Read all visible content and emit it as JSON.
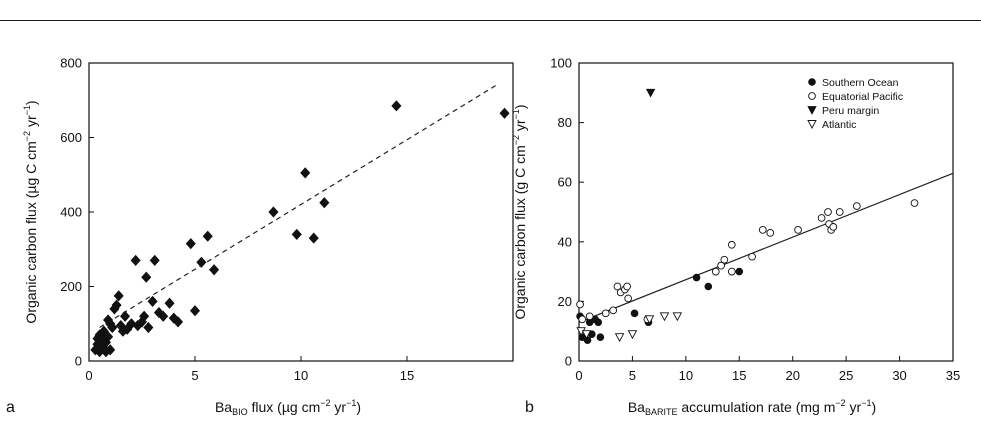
{
  "chart_data": [
    {
      "type": "scatter",
      "panel_label": "a",
      "xlabel_main": "Ba",
      "xlabel_sub": "BIO",
      "xlabel_rest": " flux (µg cm",
      "xlabel_sup": "−2",
      "xlabel_end": " yr",
      "xlabel_sup2": "−1",
      "xlabel_close": ")",
      "ylabel_main": "Organic carbon flux (µg C cm",
      "ylabel_sup": "−2",
      "ylabel_mid": " yr",
      "ylabel_sup2": "−1",
      "ylabel_close": ")",
      "xlim": [
        0,
        20
      ],
      "ylim": [
        0,
        800
      ],
      "xticks": [
        0,
        5,
        10,
        15
      ],
      "yticks": [
        0,
        200,
        400,
        600,
        800
      ],
      "marker": "filled-diamond",
      "series": [
        {
          "points": [
            [
              0.3,
              30
            ],
            [
              0.4,
              45
            ],
            [
              0.4,
              60
            ],
            [
              0.5,
              25
            ],
            [
              0.5,
              70
            ],
            [
              0.6,
              40
            ],
            [
              0.6,
              55
            ],
            [
              0.7,
              35
            ],
            [
              0.7,
              80
            ],
            [
              0.8,
              25
            ],
            [
              0.8,
              50
            ],
            [
              0.9,
              65
            ],
            [
              1.0,
              30
            ],
            [
              1.0,
              100
            ],
            [
              0.9,
              110
            ],
            [
              1.1,
              90
            ],
            [
              1.2,
              140
            ],
            [
              1.3,
              150
            ],
            [
              1.4,
              175
            ],
            [
              1.5,
              95
            ],
            [
              1.6,
              80
            ],
            [
              1.7,
              120
            ],
            [
              1.8,
              85
            ],
            [
              2.0,
              100
            ],
            [
              2.2,
              270
            ],
            [
              2.3,
              95
            ],
            [
              2.5,
              105
            ],
            [
              2.6,
              120
            ],
            [
              2.7,
              225
            ],
            [
              2.8,
              90
            ],
            [
              3.0,
              160
            ],
            [
              3.1,
              270
            ],
            [
              3.3,
              130
            ],
            [
              3.5,
              120
            ],
            [
              3.8,
              155
            ],
            [
              4.0,
              115
            ],
            [
              4.2,
              105
            ],
            [
              4.8,
              315
            ],
            [
              5.0,
              135
            ],
            [
              5.3,
              265
            ],
            [
              5.6,
              335
            ],
            [
              5.9,
              245
            ],
            [
              8.7,
              400
            ],
            [
              9.8,
              340
            ],
            [
              10.2,
              505
            ],
            [
              10.6,
              330
            ],
            [
              11.1,
              425
            ],
            [
              14.5,
              685
            ],
            [
              19.6,
              665
            ]
          ]
        }
      ],
      "fit_line": {
        "style": "dashed",
        "from": [
          0.5,
          90
        ],
        "to": [
          19.2,
          740
        ]
      }
    },
    {
      "type": "scatter",
      "panel_label": "b",
      "xlabel_main": "Ba",
      "xlabel_sub": "BARITE",
      "xlabel_rest": " accumulation rate (mg m",
      "xlabel_sup": "−2",
      "xlabel_end": " yr",
      "xlabel_sup2": "−1",
      "xlabel_close": ")",
      "ylabel_main": "Organic carbon flux (g C cm",
      "ylabel_sup": "−2",
      "ylabel_mid": " yr",
      "ylabel_sup2": "−1",
      "ylabel_close": ")",
      "xlim": [
        0,
        35
      ],
      "ylim": [
        0,
        100
      ],
      "xticks": [
        0,
        5,
        10,
        15,
        20,
        25,
        30,
        35
      ],
      "yticks": [
        0,
        20,
        40,
        60,
        80,
        100
      ],
      "legend_position": "top-right",
      "series": [
        {
          "name": "Southern Ocean",
          "marker": "filled-circle",
          "points": [
            [
              0.1,
              15
            ],
            [
              0.3,
              8
            ],
            [
              0.8,
              7
            ],
            [
              1.0,
              13
            ],
            [
              1.2,
              9
            ],
            [
              1.5,
              14
            ],
            [
              1.8,
              13
            ],
            [
              2.0,
              8
            ],
            [
              5.2,
              16
            ],
            [
              6.5,
              13
            ],
            [
              11.0,
              28
            ],
            [
              12.1,
              25
            ],
            [
              15.0,
              30
            ]
          ]
        },
        {
          "name": "Equatorial Pacific",
          "marker": "open-circle",
          "points": [
            [
              0.1,
              19
            ],
            [
              0.3,
              14
            ],
            [
              1.0,
              15
            ],
            [
              2.5,
              16
            ],
            [
              3.2,
              17
            ],
            [
              3.6,
              25
            ],
            [
              3.9,
              23
            ],
            [
              4.3,
              24
            ],
            [
              4.5,
              25
            ],
            [
              4.6,
              21
            ],
            [
              6.4,
              14
            ],
            [
              12.8,
              30
            ],
            [
              13.3,
              32
            ],
            [
              13.6,
              34
            ],
            [
              14.3,
              30
            ],
            [
              14.3,
              39
            ],
            [
              16.2,
              35
            ],
            [
              17.2,
              44
            ],
            [
              17.9,
              43
            ],
            [
              20.5,
              44
            ],
            [
              22.7,
              48
            ],
            [
              23.3,
              50
            ],
            [
              23.4,
              46
            ],
            [
              23.6,
              44
            ],
            [
              23.8,
              45
            ],
            [
              24.4,
              50
            ],
            [
              26.0,
              52
            ],
            [
              31.4,
              53
            ]
          ]
        },
        {
          "name": "Peru margin",
          "marker": "filled-triangle-down",
          "points": [
            [
              6.7,
              90
            ]
          ]
        },
        {
          "name": "Atlantic",
          "marker": "open-triangle-down",
          "points": [
            [
              0.2,
              10
            ],
            [
              0.7,
              9
            ],
            [
              3.8,
              8
            ],
            [
              5.0,
              9
            ],
            [
              6.6,
              14
            ],
            [
              8.0,
              15
            ],
            [
              9.2,
              15
            ]
          ]
        }
      ],
      "fit_line": {
        "style": "solid",
        "from": [
          0,
          13
        ],
        "to": [
          35,
          63
        ]
      }
    }
  ]
}
